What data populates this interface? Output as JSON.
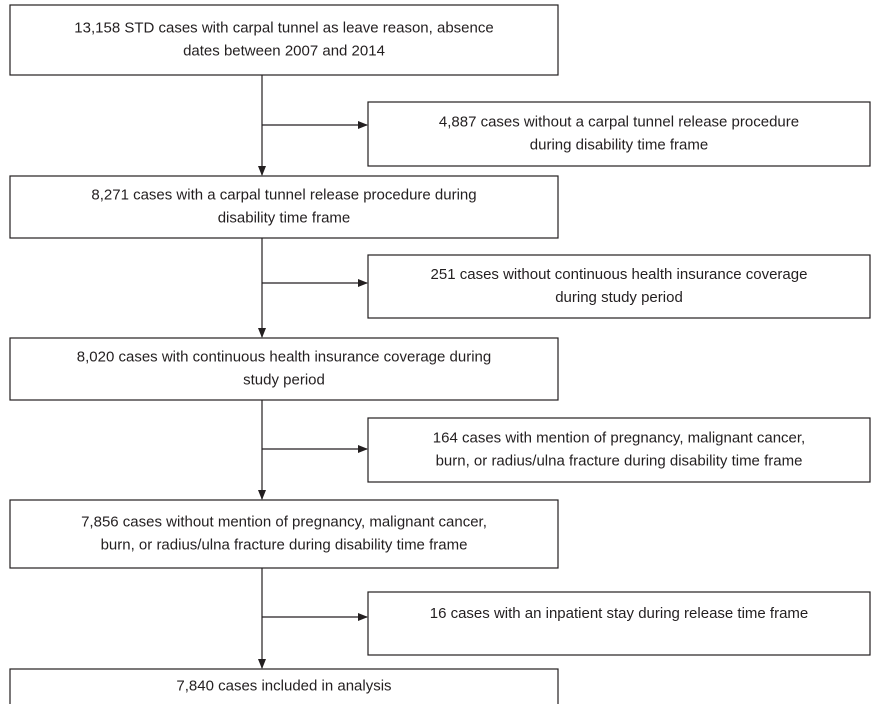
{
  "nodes": [
    {
      "lines": [
        "13,158 STD cases with carpal tunnel as leave reason, absence",
        "dates between 2007 and 2014"
      ]
    },
    {
      "lines": [
        "8,271 cases with a carpal tunnel release procedure during",
        "disability time frame"
      ]
    },
    {
      "lines": [
        "8,020 cases with continuous health insurance coverage during",
        "study period"
      ]
    },
    {
      "lines": [
        "7,856 cases without mention of pregnancy, malignant cancer,",
        "burn, or radius/ulna fracture during disability time frame"
      ]
    },
    {
      "lines": [
        "7,840 cases included in analysis"
      ]
    }
  ],
  "exclusions": [
    {
      "lines": [
        "4,887 cases without a carpal tunnel release procedure",
        "during disability time frame"
      ]
    },
    {
      "lines": [
        "251 cases without continuous health insurance coverage",
        "during study period"
      ]
    },
    {
      "lines": [
        "164 cases with mention of pregnancy, malignant cancer,",
        "burn, or radius/ulna fracture during disability time frame"
      ]
    },
    {
      "lines": [
        "16 cases with an inpatient stay during release time frame"
      ]
    }
  ]
}
